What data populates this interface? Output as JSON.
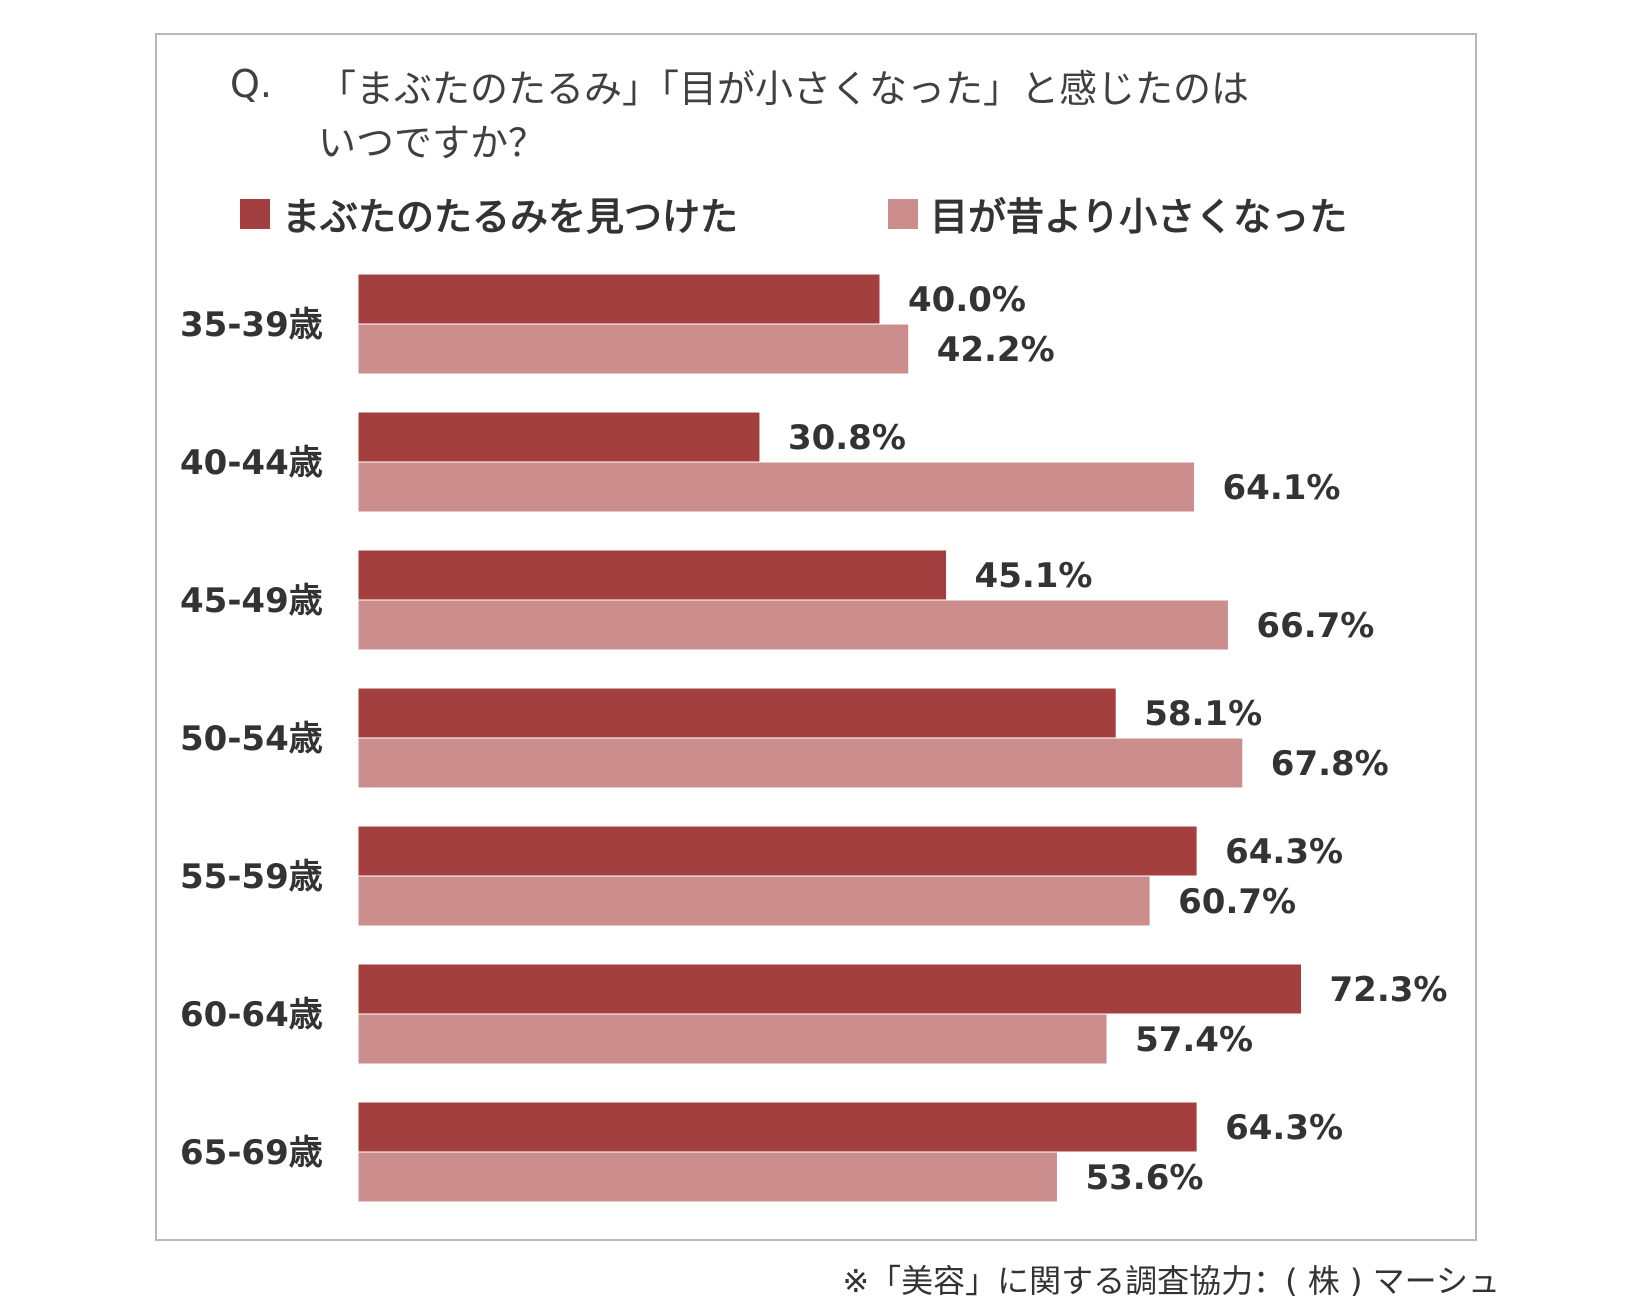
{
  "chart_data": {
    "type": "bar",
    "orientation": "horizontal",
    "title_prefix": "Q.",
    "title_line1": "「まぶたのたるみ」「目が小さくなった」と感じたのは",
    "title_line2": "いつですか？",
    "categories": [
      "35-39歳",
      "40-44歳",
      "45-49歳",
      "50-54歳",
      "55-59歳",
      "60-64歳",
      "65-69歳"
    ],
    "series": [
      {
        "name": "まぶたのたるみを見つけた",
        "color": "#a3403f",
        "values": [
          40.0,
          30.8,
          45.1,
          58.1,
          64.3,
          72.3,
          64.3
        ],
        "labels": [
          "40.0%",
          "30.8%",
          "45.1%",
          "58.1%",
          "64.3%",
          "72.3%",
          "64.3%"
        ]
      },
      {
        "name": "目が昔より小さくなった",
        "color": "#cc8e8c",
        "values": [
          42.2,
          64.1,
          66.7,
          67.8,
          60.7,
          57.4,
          53.6
        ],
        "labels": [
          "42.2%",
          "64.1%",
          "66.7%",
          "67.8%",
          "60.7%",
          "57.4%",
          "53.6%"
        ]
      }
    ],
    "xlim": [
      0,
      100
    ],
    "grid": false,
    "legend_position": "top"
  },
  "footnote": "※「美容」に関する調査協力：( 株 ) マーシュ"
}
